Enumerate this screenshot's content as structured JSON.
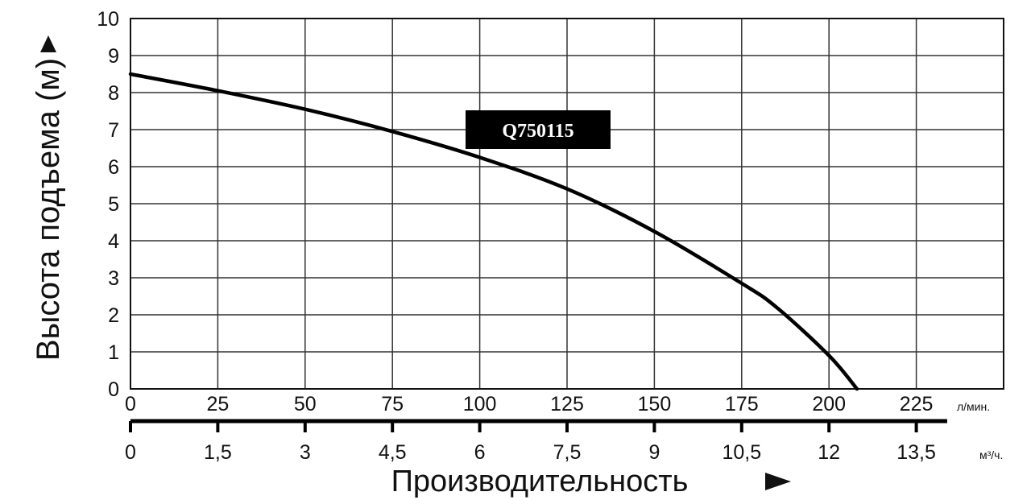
{
  "chart_data": {
    "type": "line",
    "ylabel": "Высота подъема (м)",
    "xlabel": "Производительность",
    "x_unit": "л/мин.",
    "x2_unit": "м³/ч.",
    "xlim": [
      0,
      250
    ],
    "ylim": [
      0,
      10
    ],
    "grid": true,
    "x_ticks": [
      0,
      25,
      50,
      75,
      100,
      125,
      150,
      175,
      200,
      225
    ],
    "x2_ticks": [
      "0",
      "1,5",
      "3",
      "4,5",
      "6",
      "7,5",
      "9",
      "10,5",
      "12",
      "13,5"
    ],
    "y_ticks": [
      0,
      1,
      2,
      3,
      4,
      5,
      6,
      7,
      8,
      9,
      10
    ],
    "series": [
      {
        "name": "Q750115",
        "x": [
          0,
          25,
          50,
          75,
          100,
          125,
          150,
          175,
          185,
          200,
          208
        ],
        "y": [
          8.5,
          8.05,
          7.55,
          6.95,
          6.25,
          5.4,
          4.25,
          2.85,
          2.2,
          0.9,
          0
        ]
      }
    ]
  },
  "colors": {
    "line": "#000000",
    "grid": "#333333",
    "label_bg": "#000000"
  }
}
